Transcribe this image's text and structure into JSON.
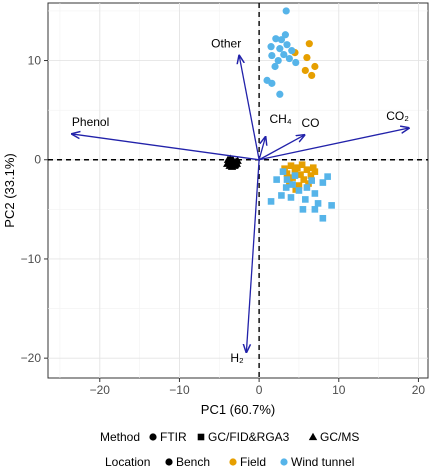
{
  "chart_data": {
    "type": "scatter",
    "subtype": "PCA biplot",
    "xlabel": "PC1 (60.7%)",
    "ylabel": "PC2 (33.1%)",
    "xlim": [
      -26.5,
      21.2
    ],
    "ylim": [
      -22,
      15.8
    ],
    "x_ticks": [
      -20,
      -10,
      0,
      10,
      20
    ],
    "y_ticks": [
      -20,
      -10,
      0,
      10
    ],
    "grid": true,
    "zero_lines": "dashed",
    "arrow_color": "#2222aa",
    "loadings": [
      {
        "label": "Phenol",
        "x": -23.5,
        "y": 2.6
      },
      {
        "label": "Other",
        "x": -2.5,
        "y": 10.5
      },
      {
        "label": "CH₄",
        "x": 0.8,
        "y": 2.3
      },
      {
        "label": "CO",
        "x": 5.7,
        "y": 2.5
      },
      {
        "label": "CO₂",
        "x": 18.8,
        "y": 3.2
      },
      {
        "label": "H₂",
        "x": -1.6,
        "y": -19.4
      }
    ],
    "series": [
      {
        "name": "Bench",
        "color": "#000000",
        "shape": "triangle",
        "points": [
          [
            -3.8,
            -0.2
          ],
          [
            -3.5,
            -0.4
          ],
          [
            -3.2,
            -0.3
          ],
          [
            -3.0,
            -0.5
          ],
          [
            -3.6,
            0.1
          ],
          [
            -3.3,
            0.0
          ],
          [
            -2.9,
            -0.2
          ],
          [
            -4.0,
            -0.4
          ],
          [
            -3.1,
            -0.6
          ],
          [
            -2.8,
            -0.4
          ],
          [
            -3.7,
            -0.6
          ],
          [
            -3.4,
            -0.7
          ],
          [
            -3.9,
            0.0
          ],
          [
            -2.7,
            -0.1
          ]
        ]
      },
      {
        "name": "Field",
        "color": "#e69f00",
        "shape": "mixed",
        "points": [
          {
            "x": 4.5,
            "y": -1.2,
            "s": "square"
          },
          {
            "x": 5.2,
            "y": -1.5,
            "s": "square"
          },
          {
            "x": 6.0,
            "y": -1.0,
            "s": "square"
          },
          {
            "x": 4.8,
            "y": -0.8,
            "s": "square"
          },
          {
            "x": 6.5,
            "y": -1.6,
            "s": "square"
          },
          {
            "x": 5.6,
            "y": -2.0,
            "s": "square"
          },
          {
            "x": 4.2,
            "y": -1.8,
            "s": "square"
          },
          {
            "x": 3.5,
            "y": -1.4,
            "s": "square"
          },
          {
            "x": 7.0,
            "y": -1.2,
            "s": "square"
          },
          {
            "x": 5.0,
            "y": -2.6,
            "s": "square"
          },
          {
            "x": 6.2,
            "y": -2.4,
            "s": "square"
          },
          {
            "x": 4.0,
            "y": -0.6,
            "s": "square"
          },
          {
            "x": 5.4,
            "y": -0.5,
            "s": "square"
          },
          {
            "x": 3.8,
            "y": -2.2,
            "s": "square"
          },
          {
            "x": 6.8,
            "y": -0.8,
            "s": "square"
          },
          {
            "x": 4.6,
            "y": -3.0,
            "s": "square"
          },
          {
            "x": 3.2,
            "y": -0.9,
            "s": "square"
          },
          {
            "x": 4.5,
            "y": 10.8,
            "s": "circle"
          },
          {
            "x": 6.3,
            "y": 11.7,
            "s": "circle"
          },
          {
            "x": 5.8,
            "y": 9.0,
            "s": "circle"
          },
          {
            "x": 6.6,
            "y": 8.5,
            "s": "circle"
          },
          {
            "x": 7.0,
            "y": 9.4,
            "s": "circle"
          },
          {
            "x": 6.0,
            "y": 10.3,
            "s": "circle"
          }
        ]
      },
      {
        "name": "Wind tunnel",
        "color": "#56b4e9",
        "shape": "mixed",
        "points": [
          {
            "x": 3.4,
            "y": 15.0,
            "s": "circle"
          },
          {
            "x": 2.1,
            "y": 12.2,
            "s": "circle"
          },
          {
            "x": 2.8,
            "y": 12.1,
            "s": "circle"
          },
          {
            "x": 3.5,
            "y": 11.6,
            "s": "circle"
          },
          {
            "x": 2.6,
            "y": 11.2,
            "s": "circle"
          },
          {
            "x": 3.1,
            "y": 10.6,
            "s": "circle"
          },
          {
            "x": 3.8,
            "y": 10.2,
            "s": "circle"
          },
          {
            "x": 2.4,
            "y": 10.0,
            "s": "circle"
          },
          {
            "x": 1.6,
            "y": 10.5,
            "s": "circle"
          },
          {
            "x": 4.1,
            "y": 11.0,
            "s": "circle"
          },
          {
            "x": 2.0,
            "y": 9.4,
            "s": "circle"
          },
          {
            "x": 1.0,
            "y": 8.0,
            "s": "circle"
          },
          {
            "x": 1.6,
            "y": 7.7,
            "s": "circle"
          },
          {
            "x": 2.6,
            "y": 6.6,
            "s": "circle"
          },
          {
            "x": 3.3,
            "y": 12.6,
            "s": "circle"
          },
          {
            "x": 4.6,
            "y": 9.8,
            "s": "circle"
          },
          {
            "x": 1.5,
            "y": 11.4,
            "s": "circle"
          },
          {
            "x": 3.0,
            "y": -1.2,
            "s": "square"
          },
          {
            "x": 3.5,
            "y": -2.0,
            "s": "square"
          },
          {
            "x": 4.2,
            "y": -2.5,
            "s": "square"
          },
          {
            "x": 5.0,
            "y": -3.1,
            "s": "square"
          },
          {
            "x": 2.8,
            "y": -3.6,
            "s": "square"
          },
          {
            "x": 1.5,
            "y": -4.2,
            "s": "square"
          },
          {
            "x": 5.8,
            "y": -4.0,
            "s": "square"
          },
          {
            "x": 7.0,
            "y": -3.4,
            "s": "square"
          },
          {
            "x": 8.0,
            "y": -2.3,
            "s": "square"
          },
          {
            "x": 8.6,
            "y": -1.7,
            "s": "square"
          },
          {
            "x": 7.4,
            "y": -4.4,
            "s": "square"
          },
          {
            "x": 5.5,
            "y": -5.0,
            "s": "square"
          },
          {
            "x": 8.0,
            "y": -5.9,
            "s": "square"
          },
          {
            "x": 7.0,
            "y": -5.0,
            "s": "square"
          },
          {
            "x": 9.1,
            "y": -4.6,
            "s": "square"
          },
          {
            "x": 6.0,
            "y": -2.8,
            "s": "square"
          },
          {
            "x": 4.5,
            "y": -1.6,
            "s": "square"
          },
          {
            "x": 3.4,
            "y": -2.8,
            "s": "square"
          },
          {
            "x": 2.2,
            "y": -2.0,
            "s": "square"
          },
          {
            "x": 6.6,
            "y": -2.1,
            "s": "square"
          },
          {
            "x": 4.0,
            "y": -3.8,
            "s": "square"
          }
        ]
      }
    ],
    "legend": {
      "placement": "bottom",
      "method_title": "Method",
      "method_items": [
        {
          "label": "FTIR",
          "shape": "circle"
        },
        {
          "label": "GC/FID&RGA3",
          "shape": "square"
        },
        {
          "label": "GC/MS",
          "shape": "triangle"
        }
      ],
      "location_title": "Location",
      "location_items": [
        {
          "label": "Bench",
          "color": "#000000"
        },
        {
          "label": "Field",
          "color": "#e69f00"
        },
        {
          "label": "Wind tunnel",
          "color": "#56b4e9"
        }
      ]
    }
  }
}
